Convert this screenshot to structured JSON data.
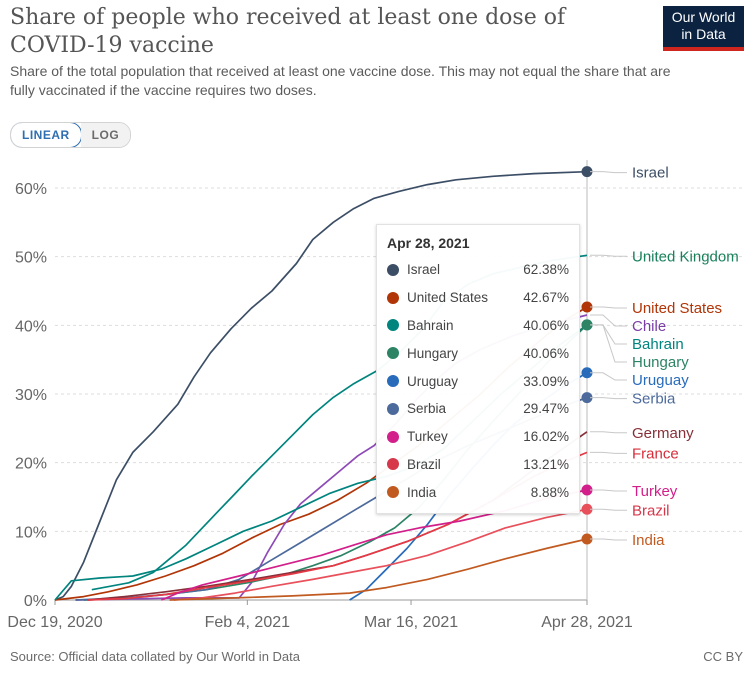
{
  "title": "Share of people who received at least one dose of COVID-19 vaccine",
  "subtitle": "Share of the total population that received at least one vaccine dose. This may not equal the share that are fully vaccinated if the vaccine requires two doses.",
  "logo": {
    "line1": "Our World",
    "line2": "in Data"
  },
  "scale_toggle": {
    "linear": "LINEAR",
    "log": "LOG"
  },
  "footer": {
    "source": "Source: Official data collated by Our World in Data",
    "license": "CC BY"
  },
  "tooltip": {
    "date": "Apr 28, 2021",
    "rows": [
      {
        "name": "Israel",
        "value": "62.38%"
      },
      {
        "name": "United States",
        "value": "42.67%"
      },
      {
        "name": "Bahrain",
        "value": "40.06%"
      },
      {
        "name": "Hungary",
        "value": "40.06%"
      },
      {
        "name": "Uruguay",
        "value": "33.09%"
      },
      {
        "name": "Serbia",
        "value": "29.47%"
      },
      {
        "name": "Turkey",
        "value": "16.02%"
      },
      {
        "name": "Brazil",
        "value": "13.21%"
      },
      {
        "name": "India",
        "value": "8.88%"
      }
    ]
  },
  "chart_data": {
    "type": "line",
    "x_start": "2020-12-19",
    "x_end": "2021-04-28",
    "x_ticks": [
      {
        "date": "2020-12-19",
        "label": "Dec 19, 2020"
      },
      {
        "date": "2021-02-04",
        "label": "Feb 4, 2021"
      },
      {
        "date": "2021-03-16",
        "label": "Mar 16, 2021"
      },
      {
        "date": "2021-04-28",
        "label": "Apr 28, 2021"
      }
    ],
    "y_ticks": [
      0,
      10,
      20,
      30,
      40,
      50,
      60
    ],
    "y_tick_suffix": "%",
    "ylim": [
      0,
      63
    ],
    "grid": "horizontal dashed",
    "legend": "right end labels",
    "series": [
      {
        "name": "Israel",
        "color": "#3c4e66",
        "label_color": "#3c4e66",
        "end_dot": true,
        "points": [
          [
            "2020-12-19",
            0
          ],
          [
            "2020-12-21",
            0.5
          ],
          [
            "2020-12-23",
            2.0
          ],
          [
            "2020-12-26",
            5.5
          ],
          [
            "2020-12-30",
            11.5
          ],
          [
            "2021-01-03",
            17.5
          ],
          [
            "2021-01-07",
            21.5
          ],
          [
            "2021-01-12",
            24.5
          ],
          [
            "2021-01-18",
            28.5
          ],
          [
            "2021-01-22",
            32.5
          ],
          [
            "2021-01-26",
            36.0
          ],
          [
            "2021-01-31",
            39.5
          ],
          [
            "2021-02-05",
            42.5
          ],
          [
            "2021-02-10",
            45.0
          ],
          [
            "2021-02-16",
            49.0
          ],
          [
            "2021-02-20",
            52.5
          ],
          [
            "2021-02-25",
            55.0
          ],
          [
            "2021-03-02",
            57.0
          ],
          [
            "2021-03-07",
            58.5
          ],
          [
            "2021-03-13",
            59.5
          ],
          [
            "2021-03-20",
            60.5
          ],
          [
            "2021-03-27",
            61.2
          ],
          [
            "2021-04-05",
            61.7
          ],
          [
            "2021-04-15",
            62.1
          ],
          [
            "2021-04-28",
            62.38
          ]
        ]
      },
      {
        "name": "United Kingdom",
        "color": "#00847e",
        "label_color": "#18805b",
        "end_dot": false,
        "points": [
          [
            "2020-12-28",
            1.5
          ],
          [
            "2021-01-06",
            2.5
          ],
          [
            "2021-01-12",
            4.0
          ],
          [
            "2021-01-16",
            6.0
          ],
          [
            "2021-01-20",
            8.0
          ],
          [
            "2021-01-24",
            10.5
          ],
          [
            "2021-01-28",
            13.0
          ],
          [
            "2021-02-01",
            15.5
          ],
          [
            "2021-02-05",
            18.0
          ],
          [
            "2021-02-10",
            21.0
          ],
          [
            "2021-02-15",
            24.0
          ],
          [
            "2021-02-20",
            27.0
          ],
          [
            "2021-02-25",
            29.5
          ],
          [
            "2021-03-02",
            31.5
          ],
          [
            "2021-03-08",
            33.5
          ],
          [
            "2021-03-14",
            36.5
          ],
          [
            "2021-03-19",
            39.5
          ],
          [
            "2021-03-24",
            43.5
          ],
          [
            "2021-03-30",
            46.0
          ],
          [
            "2021-04-05",
            47.5
          ],
          [
            "2021-04-12",
            48.5
          ],
          [
            "2021-04-20",
            49.5
          ],
          [
            "2021-04-28",
            50.2
          ]
        ]
      },
      {
        "name": "United States",
        "color": "#b13507",
        "label_color": "#b13507",
        "end_dot": true,
        "points": [
          [
            "2020-12-19",
            0
          ],
          [
            "2020-12-26",
            0.5
          ],
          [
            "2021-01-01",
            1.2
          ],
          [
            "2021-01-08",
            2.2
          ],
          [
            "2021-01-15",
            3.5
          ],
          [
            "2021-01-22",
            5.0
          ],
          [
            "2021-01-29",
            6.8
          ],
          [
            "2021-02-05",
            9.0
          ],
          [
            "2021-02-12",
            11.0
          ],
          [
            "2021-02-19",
            12.5
          ],
          [
            "2021-02-26",
            14.5
          ],
          [
            "2021-03-05",
            17.0
          ],
          [
            "2021-03-12",
            20.0
          ],
          [
            "2021-03-19",
            23.0
          ],
          [
            "2021-03-26",
            26.5
          ],
          [
            "2021-04-02",
            30.0
          ],
          [
            "2021-04-09",
            34.0
          ],
          [
            "2021-04-16",
            37.5
          ],
          [
            "2021-04-22",
            40.5
          ],
          [
            "2021-04-28",
            42.67
          ]
        ]
      },
      {
        "name": "Chile",
        "color": "#8e4ab6",
        "label_color": "#7a3ea6",
        "end_dot": false,
        "points": [
          [
            "2020-12-24",
            0
          ],
          [
            "2021-01-20",
            0.3
          ],
          [
            "2021-02-02",
            0.3
          ],
          [
            "2021-02-05",
            2.5
          ],
          [
            "2021-02-09",
            7.0
          ],
          [
            "2021-02-13",
            11.0
          ],
          [
            "2021-02-17",
            14.0
          ],
          [
            "2021-02-22",
            16.5
          ],
          [
            "2021-02-27",
            19.0
          ],
          [
            "2021-03-03",
            21.0
          ],
          [
            "2021-03-07",
            22.5
          ],
          [
            "2021-03-12",
            25.5
          ],
          [
            "2021-03-17",
            29.0
          ],
          [
            "2021-03-22",
            32.0
          ],
          [
            "2021-03-27",
            34.5
          ],
          [
            "2021-04-02",
            36.5
          ],
          [
            "2021-04-10",
            38.5
          ],
          [
            "2021-04-18",
            40.0
          ],
          [
            "2021-04-28",
            41.5
          ]
        ]
      },
      {
        "name": "Bahrain",
        "color": "#00847e",
        "label_color": "#00847e",
        "end_dot": true,
        "points": [
          [
            "2020-12-19",
            0
          ],
          [
            "2020-12-23",
            2.8
          ],
          [
            "2020-12-30",
            3.2
          ],
          [
            "2021-01-07",
            3.5
          ],
          [
            "2021-01-14",
            4.5
          ],
          [
            "2021-01-20",
            6.0
          ],
          [
            "2021-01-27",
            8.0
          ],
          [
            "2021-02-03",
            10.0
          ],
          [
            "2021-02-10",
            11.5
          ],
          [
            "2021-02-17",
            13.5
          ],
          [
            "2021-02-24",
            15.5
          ],
          [
            "2021-03-03",
            17.0
          ],
          [
            "2021-03-10",
            18.0
          ],
          [
            "2021-03-17",
            19.5
          ],
          [
            "2021-03-24",
            22.0
          ],
          [
            "2021-03-31",
            26.0
          ],
          [
            "2021-04-07",
            30.0
          ],
          [
            "2021-04-14",
            33.5
          ],
          [
            "2021-04-21",
            37.0
          ],
          [
            "2021-04-28",
            40.06
          ]
        ]
      },
      {
        "name": "Hungary",
        "color": "#2c8465",
        "label_color": "#2c8465",
        "end_dot": true,
        "points": [
          [
            "2020-12-26",
            0
          ],
          [
            "2021-01-05",
            0.2
          ],
          [
            "2021-01-15",
            0.8
          ],
          [
            "2021-01-25",
            1.5
          ],
          [
            "2021-02-04",
            2.5
          ],
          [
            "2021-02-12",
            3.5
          ],
          [
            "2021-02-20",
            5.0
          ],
          [
            "2021-02-27",
            6.5
          ],
          [
            "2021-03-06",
            8.5
          ],
          [
            "2021-03-12",
            10.5
          ],
          [
            "2021-03-18",
            13.5
          ],
          [
            "2021-03-24",
            17.5
          ],
          [
            "2021-03-30",
            22.0
          ],
          [
            "2021-04-05",
            26.0
          ],
          [
            "2021-04-12",
            30.5
          ],
          [
            "2021-04-19",
            35.0
          ],
          [
            "2021-04-28",
            40.06
          ]
        ]
      },
      {
        "name": "Uruguay",
        "color": "#286bbb",
        "label_color": "#286bbb",
        "end_dot": true,
        "points": [
          [
            "2021-03-01",
            0
          ],
          [
            "2021-03-05",
            1.5
          ],
          [
            "2021-03-10",
            4.5
          ],
          [
            "2021-03-15",
            7.5
          ],
          [
            "2021-03-20",
            11.0
          ],
          [
            "2021-03-25",
            15.0
          ],
          [
            "2021-03-30",
            18.5
          ],
          [
            "2021-04-05",
            22.5
          ],
          [
            "2021-04-10",
            25.5
          ],
          [
            "2021-04-16",
            28.5
          ],
          [
            "2021-04-22",
            31.0
          ],
          [
            "2021-04-28",
            33.09
          ]
        ]
      },
      {
        "name": "Serbia",
        "color": "#4c6a9c",
        "label_color": "#4c6a9c",
        "end_dot": true,
        "points": [
          [
            "2020-12-24",
            0
          ],
          [
            "2021-01-05",
            0.3
          ],
          [
            "2021-01-15",
            0.8
          ],
          [
            "2021-01-25",
            1.5
          ],
          [
            "2021-02-02",
            3.0
          ],
          [
            "2021-02-09",
            5.5
          ],
          [
            "2021-02-16",
            8.0
          ],
          [
            "2021-02-23",
            10.5
          ],
          [
            "2021-03-02",
            13.0
          ],
          [
            "2021-03-09",
            15.5
          ],
          [
            "2021-03-16",
            18.0
          ],
          [
            "2021-03-23",
            20.5
          ],
          [
            "2021-03-30",
            22.5
          ],
          [
            "2021-04-07",
            24.5
          ],
          [
            "2021-04-15",
            26.5
          ],
          [
            "2021-04-22",
            28.2
          ],
          [
            "2021-04-28",
            29.47
          ]
        ]
      },
      {
        "name": "Germany",
        "color": "#883039",
        "label_color": "#883039",
        "end_dot": false,
        "points": [
          [
            "2020-12-27",
            0
          ],
          [
            "2021-01-05",
            0.5
          ],
          [
            "2021-01-15",
            1.2
          ],
          [
            "2021-01-25",
            2.0
          ],
          [
            "2021-02-05",
            3.0
          ],
          [
            "2021-02-15",
            4.0
          ],
          [
            "2021-02-25",
            5.0
          ],
          [
            "2021-03-05",
            6.5
          ],
          [
            "2021-03-15",
            8.5
          ],
          [
            "2021-03-25",
            11.0
          ],
          [
            "2021-04-05",
            14.5
          ],
          [
            "2021-04-15",
            19.0
          ],
          [
            "2021-04-22",
            22.0
          ],
          [
            "2021-04-28",
            24.5
          ]
        ]
      },
      {
        "name": "France",
        "color": "#e63946",
        "label_color": "#d62d3b",
        "end_dot": false,
        "points": [
          [
            "2020-12-27",
            0
          ],
          [
            "2021-01-05",
            0.2
          ],
          [
            "2021-01-15",
            0.8
          ],
          [
            "2021-01-25",
            1.8
          ],
          [
            "2021-02-05",
            2.8
          ],
          [
            "2021-02-15",
            3.8
          ],
          [
            "2021-02-25",
            5.0
          ],
          [
            "2021-03-05",
            6.5
          ],
          [
            "2021-03-15",
            8.5
          ],
          [
            "2021-03-25",
            11.0
          ],
          [
            "2021-04-05",
            14.5
          ],
          [
            "2021-04-15",
            18.0
          ],
          [
            "2021-04-22",
            20.0
          ],
          [
            "2021-04-28",
            21.5
          ]
        ]
      },
      {
        "name": "Turkey",
        "color": "#d21f8a",
        "label_color": "#d21f8a",
        "end_dot": true,
        "points": [
          [
            "2021-01-14",
            0
          ],
          [
            "2021-01-18",
            1.0
          ],
          [
            "2021-01-24",
            2.2
          ],
          [
            "2021-02-02",
            3.5
          ],
          [
            "2021-02-12",
            5.0
          ],
          [
            "2021-02-22",
            6.5
          ],
          [
            "2021-03-02",
            8.0
          ],
          [
            "2021-03-10",
            9.5
          ],
          [
            "2021-03-18",
            10.5
          ],
          [
            "2021-03-28",
            11.5
          ],
          [
            "2021-04-08",
            13.0
          ],
          [
            "2021-04-18",
            14.8
          ],
          [
            "2021-04-28",
            16.02
          ]
        ]
      },
      {
        "name": "Brazil",
        "color": "#e8505b",
        "label_color": "#d7374a",
        "end_dot": true,
        "points": [
          [
            "2021-01-17",
            0
          ],
          [
            "2021-01-24",
            0.3
          ],
          [
            "2021-02-01",
            1.0
          ],
          [
            "2021-02-10",
            2.0
          ],
          [
            "2021-02-20",
            3.0
          ],
          [
            "2021-03-01",
            4.0
          ],
          [
            "2021-03-10",
            5.0
          ],
          [
            "2021-03-20",
            6.5
          ],
          [
            "2021-03-30",
            8.5
          ],
          [
            "2021-04-08",
            10.5
          ],
          [
            "2021-04-18",
            12.0
          ],
          [
            "2021-04-28",
            13.21
          ]
        ]
      },
      {
        "name": "India",
        "color": "#c15a21",
        "label_color": "#c15a21",
        "end_dot": true,
        "points": [
          [
            "2021-01-16",
            0
          ],
          [
            "2021-02-01",
            0.3
          ],
          [
            "2021-02-15",
            0.6
          ],
          [
            "2021-03-01",
            1.0
          ],
          [
            "2021-03-10",
            1.8
          ],
          [
            "2021-03-20",
            3.0
          ],
          [
            "2021-03-30",
            4.5
          ],
          [
            "2021-04-08",
            6.0
          ],
          [
            "2021-04-18",
            7.5
          ],
          [
            "2021-04-28",
            8.88
          ]
        ]
      }
    ],
    "end_labels": [
      {
        "name": "Israel",
        "value": 62.38
      },
      {
        "name": "United Kingdom",
        "value": 50.2
      },
      {
        "name": "United States",
        "value": 42.67
      },
      {
        "name": "Chile",
        "value": 41.5
      },
      {
        "name": "Bahrain",
        "value": 40.06
      },
      {
        "name": "Hungary",
        "value": 40.06
      },
      {
        "name": "Uruguay",
        "value": 33.09
      },
      {
        "name": "Serbia",
        "value": 29.47
      },
      {
        "name": "Germany",
        "value": 24.5
      },
      {
        "name": "France",
        "value": 21.5
      },
      {
        "name": "Turkey",
        "value": 16.02
      },
      {
        "name": "Brazil",
        "value": 13.21
      },
      {
        "name": "India",
        "value": 8.88
      }
    ]
  }
}
